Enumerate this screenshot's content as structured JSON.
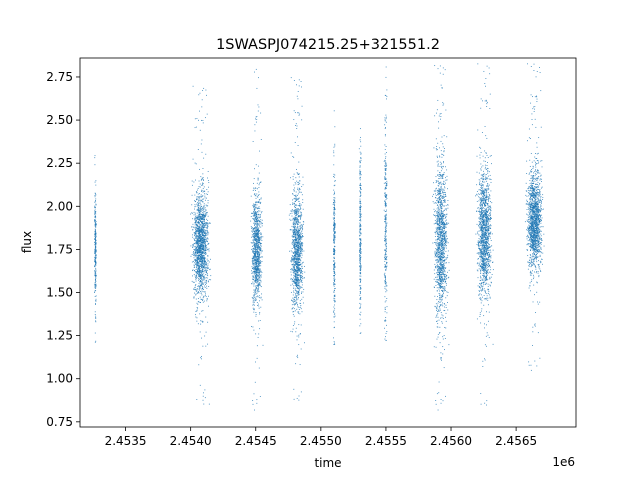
{
  "chart_data": {
    "type": "scatter",
    "title": "1SWASPJ074215.25+321551.2",
    "xlabel": "time",
    "ylabel": "flux",
    "x_offset_label": "1e6",
    "xlim": [
      2453150,
      2456960
    ],
    "ylim": [
      0.72,
      2.86
    ],
    "x_ticks": [
      2453500,
      2454000,
      2454500,
      2455000,
      2455500,
      2456000,
      2456500
    ],
    "x_tick_labels": [
      "2.4535",
      "2.4540",
      "2.4545",
      "2.4550",
      "2.4555",
      "2.4560",
      "2.4565"
    ],
    "y_ticks": [
      0.75,
      1.0,
      1.25,
      1.5,
      1.75,
      2.0,
      2.25,
      2.5,
      2.75
    ],
    "y_tick_labels": [
      "0.75",
      "1.00",
      "1.25",
      "1.50",
      "1.75",
      "2.00",
      "2.25",
      "2.50",
      "2.75"
    ],
    "grid": false,
    "legend": "none",
    "marker_color": "#1f77b4",
    "observing_seasons": [
      {
        "x_start": 2453255,
        "x_end": 2453275,
        "y_center": 1.75,
        "y_spread": 0.17,
        "y_min": 1.2,
        "y_max": 2.36
      },
      {
        "x_start": 2453990,
        "x_end": 2454160,
        "y_center": 1.78,
        "y_spread": 0.15,
        "y_min": 0.85,
        "y_max": 2.7
      },
      {
        "x_start": 2454450,
        "x_end": 2454560,
        "y_center": 1.75,
        "y_spread": 0.16,
        "y_min": 0.82,
        "y_max": 2.8
      },
      {
        "x_start": 2454750,
        "x_end": 2454880,
        "y_center": 1.75,
        "y_spread": 0.17,
        "y_min": 0.85,
        "y_max": 2.75
      },
      {
        "x_start": 2455090,
        "x_end": 2455110,
        "y_center": 1.75,
        "y_spread": 0.22,
        "y_min": 1.2,
        "y_max": 2.6
      },
      {
        "x_start": 2455290,
        "x_end": 2455310,
        "y_center": 1.85,
        "y_spread": 0.25,
        "y_min": 1.15,
        "y_max": 2.55
      },
      {
        "x_start": 2455480,
        "x_end": 2455510,
        "y_center": 1.9,
        "y_spread": 0.3,
        "y_min": 1.2,
        "y_max": 2.82
      },
      {
        "x_start": 2455850,
        "x_end": 2455990,
        "y_center": 1.8,
        "y_spread": 0.22,
        "y_min": 0.82,
        "y_max": 2.82
      },
      {
        "x_start": 2456180,
        "x_end": 2456330,
        "y_center": 1.85,
        "y_spread": 0.18,
        "y_min": 0.82,
        "y_max": 2.83
      },
      {
        "x_start": 2456560,
        "x_end": 2456720,
        "y_center": 1.92,
        "y_spread": 0.14,
        "y_min": 1.05,
        "y_max": 2.83
      }
    ]
  }
}
